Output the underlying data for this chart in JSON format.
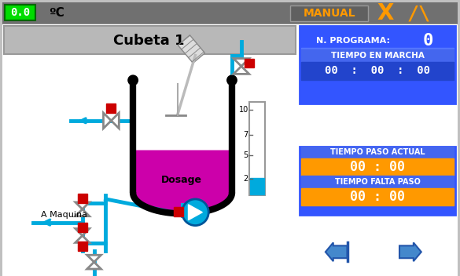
{
  "bg_color": "#c0c0c0",
  "header_bg": "#707070",
  "panel_bg": "#ffffff",
  "temp_value": "0.0",
  "temp_unit": "ºC",
  "temp_box_color": "#00dd00",
  "manual_text": "MANUAL",
  "manual_text_color": "#ff9900",
  "manual_box_color": "#606060",
  "cubeta_text": "Cubeta 1",
  "cubeta_bg": "#b8b8b8",
  "blue_color": "#3355ff",
  "blue_dark": "#2244cc",
  "orange_color": "#ff9900",
  "magenta_color": "#cc00aa",
  "cyan_color": "#00aadd",
  "cyan_light": "#55ccee",
  "red_sq_color": "#cc0000",
  "arrow_color": "#4488cc",
  "gray_valve": "#888888",
  "n_programa_label": "N. PROGRAMA:",
  "n_programa_value": "0",
  "tiempo_marcha_label": "TIEMPO EN MARCHA",
  "tiempo_marcha_value": "00  :  00  :  00",
  "tiempo_paso_label": "TIEMPO PASO ACTUAL",
  "tiempo_paso_value": "00 : 00",
  "tiempo_falta_label": "TIEMPO FALTA PASO",
  "tiempo_falta_value": "00 : 00",
  "dosage_text": "Dosage",
  "a_maquina_text": "A Maquina",
  "scale_ticks": [
    [
      "10",
      0.08
    ],
    [
      "7",
      0.35
    ],
    [
      "5",
      0.57
    ],
    [
      "2",
      0.82
    ]
  ]
}
